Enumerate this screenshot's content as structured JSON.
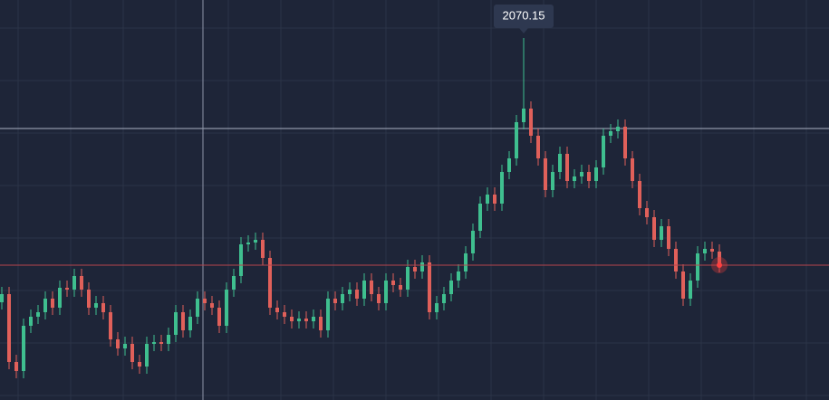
{
  "chart_data": {
    "type": "candlestick",
    "open": [
      1340,
      1362.5,
      1175,
      1150,
      1275,
      1300,
      1312.5,
      1350,
      1325,
      1380,
      1375,
      1412.5,
      1375,
      1325,
      1337.5,
      1312.5,
      1237.5,
      1212.5,
      1225,
      1175,
      1162.5,
      1225,
      1230,
      1225,
      1250,
      1312.5,
      1262.5,
      1300,
      1350,
      1337.5,
      1325,
      1275,
      1375,
      1412.5,
      1500,
      1505,
      1512.5,
      1462.5,
      1325,
      1312.5,
      1300,
      1287.5,
      1295,
      1287.5,
      1300,
      1262.5,
      1350,
      1337.5,
      1362.5,
      1375,
      1350,
      1400,
      1362.5,
      1337.5,
      1400,
      1387.5,
      1375,
      1437.5,
      1425,
      1450,
      1312.5,
      1337.5,
      1362.5,
      1400,
      1425,
      1475,
      1537.5,
      1612.5,
      1637.5,
      1612.5,
      1700,
      1737.5,
      1837.5,
      1875,
      1800,
      1737.5,
      1650,
      1700,
      1750,
      1675,
      1687.5,
      1700,
      1675,
      1712.5,
      1800,
      1812.5,
      1825,
      1737.5,
      1675,
      1600,
      1575,
      1512.5,
      1550,
      1487.5,
      1425,
      1350,
      1400,
      1475,
      1487.5,
      1480
    ],
    "high": [
      1382.5,
      1382.5,
      1195,
      1295,
      1320,
      1332.5,
      1370,
      1370,
      1400,
      1400,
      1432.5,
      1432.5,
      1395,
      1357.5,
      1357.5,
      1332.5,
      1257.5,
      1245,
      1245,
      1195,
      1245,
      1250,
      1250,
      1270,
      1332.5,
      1332.5,
      1320,
      1370,
      1370,
      1357.5,
      1345,
      1395,
      1432.5,
      1520,
      1525,
      1532.5,
      1532.5,
      1482.5,
      1345,
      1332.5,
      1320,
      1315,
      1315,
      1320,
      1320,
      1370,
      1370,
      1382.5,
      1395,
      1395,
      1420,
      1420,
      1382.5,
      1420,
      1420,
      1407.5,
      1457.5,
      1457.5,
      1470,
      1470,
      1357.5,
      1382.5,
      1420,
      1445,
      1495,
      1557.5,
      1632.5,
      1657.5,
      1657.5,
      1720,
      1757.5,
      1857.5,
      2070.15,
      1895,
      1820,
      1757.5,
      1720,
      1770,
      1770,
      1707.5,
      1720,
      1720,
      1732.5,
      1820,
      1832.5,
      1845,
      1845,
      1757.5,
      1695,
      1620,
      1595,
      1570,
      1570,
      1507.5,
      1445,
      1420,
      1495,
      1507.5,
      1507.5,
      1500
    ],
    "low": [
      1320,
      1155,
      1130,
      1130,
      1255,
      1280,
      1292.5,
      1305,
      1305,
      1355,
      1355,
      1355,
      1305,
      1305,
      1292.5,
      1217.5,
      1192.5,
      1192.5,
      1155,
      1142.5,
      1142.5,
      1205,
      1205,
      1205,
      1230,
      1242.5,
      1242.5,
      1280,
      1317.5,
      1305,
      1255,
      1255,
      1355,
      1392.5,
      1480,
      1485,
      1442.5,
      1305,
      1292.5,
      1280,
      1267.5,
      1267.5,
      1267.5,
      1267.5,
      1242.5,
      1242.5,
      1317.5,
      1317.5,
      1342.5,
      1330,
      1330,
      1342.5,
      1317.5,
      1317.5,
      1367.5,
      1355,
      1355,
      1405,
      1405,
      1292.5,
      1292.5,
      1317.5,
      1342.5,
      1380,
      1405,
      1455,
      1517.5,
      1592.5,
      1592.5,
      1592.5,
      1680,
      1717.5,
      1817.5,
      1780,
      1717.5,
      1630,
      1630,
      1680,
      1655,
      1655,
      1667.5,
      1655,
      1655,
      1692.5,
      1780,
      1792.5,
      1717.5,
      1655,
      1580,
      1555,
      1492.5,
      1492.5,
      1467.5,
      1405,
      1330,
      1330,
      1380,
      1455,
      1460,
      1422.5
    ],
    "close": [
      1362.5,
      1175,
      1150,
      1275,
      1300,
      1312.5,
      1350,
      1325,
      1380,
      1375,
      1412.5,
      1375,
      1325,
      1337.5,
      1312.5,
      1237.5,
      1212.5,
      1225,
      1175,
      1162.5,
      1225,
      1230,
      1225,
      1250,
      1312.5,
      1262.5,
      1300,
      1350,
      1337.5,
      1325,
      1275,
      1375,
      1412.5,
      1500,
      1505,
      1512.5,
      1462.5,
      1325,
      1312.5,
      1300,
      1287.5,
      1295,
      1287.5,
      1300,
      1262.5,
      1350,
      1337.5,
      1362.5,
      1375,
      1350,
      1400,
      1362.5,
      1337.5,
      1400,
      1387.5,
      1375,
      1437.5,
      1425,
      1450,
      1312.5,
      1337.5,
      1362.5,
      1400,
      1425,
      1475,
      1537.5,
      1612.5,
      1637.5,
      1612.5,
      1700,
      1737.5,
      1837.5,
      1875,
      1800,
      1737.5,
      1650,
      1700,
      1750,
      1675,
      1687.5,
      1700,
      1675,
      1712.5,
      1800,
      1812.5,
      1825,
      1737.5,
      1675,
      1600,
      1575,
      1512.5,
      1550,
      1487.5,
      1425,
      1350,
      1400,
      1475,
      1487.5,
      1480,
      1442.5
    ],
    "ylim": [
      1070,
      2175
    ],
    "up_color": "#3fbf8f",
    "down_color": "#e0605a"
  }
}
